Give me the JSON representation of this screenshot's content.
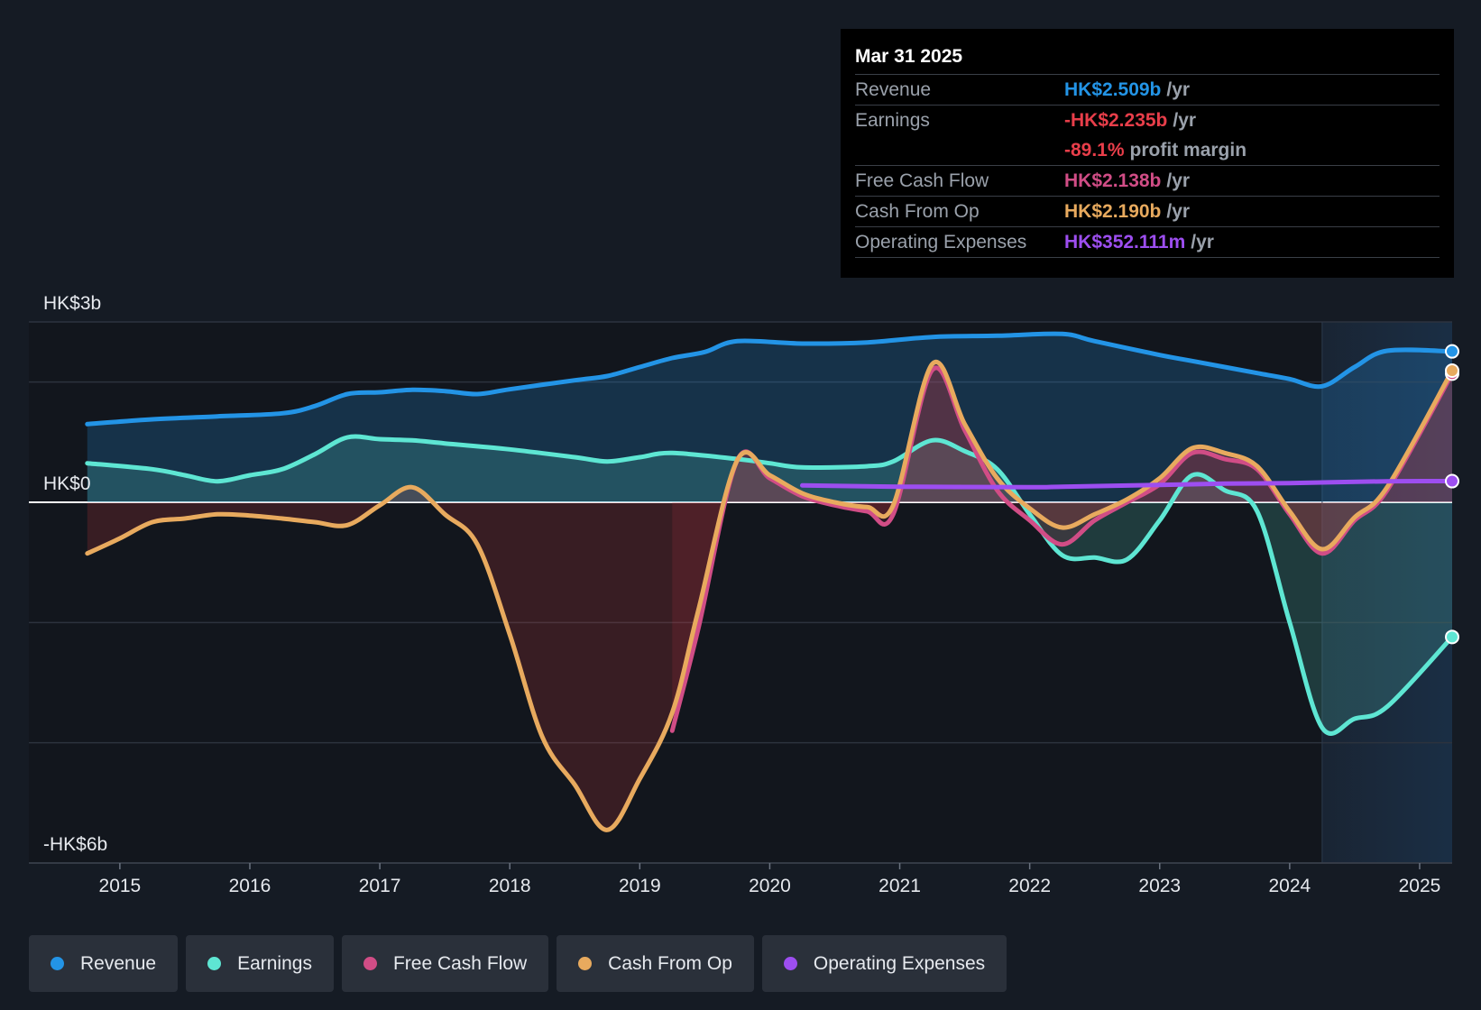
{
  "chart_data": {
    "type": "area",
    "currency": "HK$",
    "ylim": [
      -6,
      3
    ],
    "y_axis_labels": [
      {
        "value": 3,
        "text": "HK$3b"
      },
      {
        "value": 0,
        "text": "HK$0"
      },
      {
        "value": -6,
        "text": "-HK$6b"
      }
    ],
    "gridlines": [
      3,
      2,
      0,
      -2,
      -4,
      -6
    ],
    "xlim": [
      2014.3,
      2025.25
    ],
    "x_tick_labels": [
      "2015",
      "2016",
      "2017",
      "2018",
      "2019",
      "2020",
      "2021",
      "2022",
      "2023",
      "2024",
      "2025"
    ],
    "forecast_start": 2024.25,
    "series": [
      {
        "name": "Revenue",
        "color": "#2394e6",
        "x": [
          2014.75,
          2015.25,
          2015.75,
          2016.25,
          2016.5,
          2016.75,
          2017.0,
          2017.25,
          2017.5,
          2017.75,
          2018.0,
          2018.5,
          2018.75,
          2019.0,
          2019.25,
          2019.5,
          2019.75,
          2020.25,
          2020.75,
          2021.25,
          2021.75,
          2022.25,
          2022.5,
          2023.0,
          2023.25,
          2023.75,
          2024.0,
          2024.25,
          2024.5,
          2024.75,
          2025.25
        ],
        "values": [
          1.3,
          1.38,
          1.43,
          1.48,
          1.6,
          1.8,
          1.83,
          1.87,
          1.85,
          1.8,
          1.88,
          2.03,
          2.1,
          2.25,
          2.4,
          2.5,
          2.68,
          2.64,
          2.66,
          2.75,
          2.77,
          2.8,
          2.68,
          2.45,
          2.35,
          2.15,
          2.05,
          1.93,
          2.25,
          2.52,
          2.51
        ]
      },
      {
        "name": "Earnings",
        "color": "#5ee6d3",
        "x": [
          2014.75,
          2015.25,
          2015.5,
          2015.75,
          2016.0,
          2016.25,
          2016.5,
          2016.75,
          2017.0,
          2017.25,
          2017.5,
          2018.0,
          2018.5,
          2018.75,
          2019.0,
          2019.25,
          2019.75,
          2020.0,
          2020.25,
          2020.75,
          2020.95,
          2021.25,
          2021.5,
          2021.75,
          2022.0,
          2022.25,
          2022.5,
          2022.75,
          2023.0,
          2023.25,
          2023.5,
          2023.75,
          2024.0,
          2024.25,
          2024.5,
          2024.75,
          2025.25
        ],
        "values": [
          0.65,
          0.55,
          0.45,
          0.35,
          0.45,
          0.55,
          0.8,
          1.08,
          1.05,
          1.03,
          0.98,
          0.88,
          0.75,
          0.68,
          0.75,
          0.82,
          0.72,
          0.65,
          0.58,
          0.6,
          0.68,
          1.03,
          0.85,
          0.55,
          -0.2,
          -0.88,
          -0.92,
          -0.95,
          -0.3,
          0.45,
          0.2,
          -0.15,
          -2.0,
          -3.75,
          -3.6,
          -3.4,
          -2.24
        ]
      },
      {
        "name": "Free Cash Flow",
        "color": "#d14d86",
        "x": [
          2019.25,
          2019.45,
          2019.75,
          2020.0,
          2020.25,
          2020.5,
          2020.75,
          2020.95,
          2021.25,
          2021.5,
          2021.75,
          2022.0,
          2022.25,
          2022.5,
          2022.75,
          2023.0,
          2023.25,
          2023.5,
          2023.75,
          2024.0,
          2024.25,
          2024.5,
          2024.75,
          2025.25
        ],
        "values": [
          -3.8,
          -2.1,
          0.7,
          0.4,
          0.1,
          -0.05,
          -0.15,
          -0.2,
          2.2,
          1.2,
          0.2,
          -0.3,
          -0.7,
          -0.3,
          0.0,
          0.3,
          0.82,
          0.72,
          0.55,
          -0.2,
          -0.85,
          -0.3,
          0.2,
          2.14
        ]
      },
      {
        "name": "Cash From Op",
        "color": "#e8aa5e",
        "x": [
          2014.75,
          2015.0,
          2015.25,
          2015.5,
          2015.75,
          2016.0,
          2016.25,
          2016.5,
          2016.75,
          2017.0,
          2017.25,
          2017.5,
          2017.75,
          2018.0,
          2018.25,
          2018.5,
          2018.75,
          2019.0,
          2019.25,
          2019.45,
          2019.75,
          2020.0,
          2020.25,
          2020.5,
          2020.75,
          2020.95,
          2021.25,
          2021.5,
          2021.75,
          2022.0,
          2022.25,
          2022.5,
          2022.75,
          2023.0,
          2023.25,
          2023.5,
          2023.75,
          2024.0,
          2024.25,
          2024.5,
          2024.75,
          2025.25
        ],
        "values": [
          -0.85,
          -0.6,
          -0.33,
          -0.27,
          -0.2,
          -0.22,
          -0.27,
          -0.33,
          -0.38,
          -0.05,
          0.25,
          -0.2,
          -0.7,
          -2.2,
          -3.9,
          -4.7,
          -5.45,
          -4.6,
          -3.5,
          -1.8,
          0.7,
          0.45,
          0.15,
          0.0,
          -0.08,
          -0.05,
          2.3,
          1.3,
          0.4,
          -0.1,
          -0.42,
          -0.2,
          0.05,
          0.4,
          0.9,
          0.82,
          0.6,
          -0.15,
          -0.78,
          -0.25,
          0.25,
          2.19
        ]
      },
      {
        "name": "Operating Expenses",
        "color": "#9d4ef0",
        "x": [
          2020.25,
          2021.0,
          2022.0,
          2022.25,
          2023.0,
          2023.5,
          2024.0,
          2024.75,
          2025.25
        ],
        "values": [
          0.28,
          0.26,
          0.25,
          0.26,
          0.29,
          0.31,
          0.32,
          0.35,
          0.352
        ]
      }
    ]
  },
  "tooltip": {
    "date": "Mar 31 2025",
    "rows": [
      {
        "label": "Revenue",
        "value": "HK$2.509b",
        "unit": "/yr",
        "color": "#2394e6"
      },
      {
        "label": "Earnings",
        "value": "-HK$2.235b",
        "unit": "/yr",
        "color": "#e83e4a"
      },
      {
        "label": "",
        "value": "-89.1%",
        "unit": "profit margin",
        "color": "#e83e4a"
      },
      {
        "label": "Free Cash Flow",
        "value": "HK$2.138b",
        "unit": "/yr",
        "color": "#d14d86"
      },
      {
        "label": "Cash From Op",
        "value": "HK$2.190b",
        "unit": "/yr",
        "color": "#e8aa5e"
      },
      {
        "label": "Operating Expenses",
        "value": "HK$352.111m",
        "unit": "/yr",
        "color": "#9d4ef0"
      }
    ]
  },
  "legend": [
    {
      "label": "Revenue",
      "color": "#2394e6"
    },
    {
      "label": "Earnings",
      "color": "#5ee6d3"
    },
    {
      "label": "Free Cash Flow",
      "color": "#d14d86"
    },
    {
      "label": "Cash From Op",
      "color": "#e8aa5e"
    },
    {
      "label": "Operating Expenses",
      "color": "#9d4ef0"
    }
  ]
}
